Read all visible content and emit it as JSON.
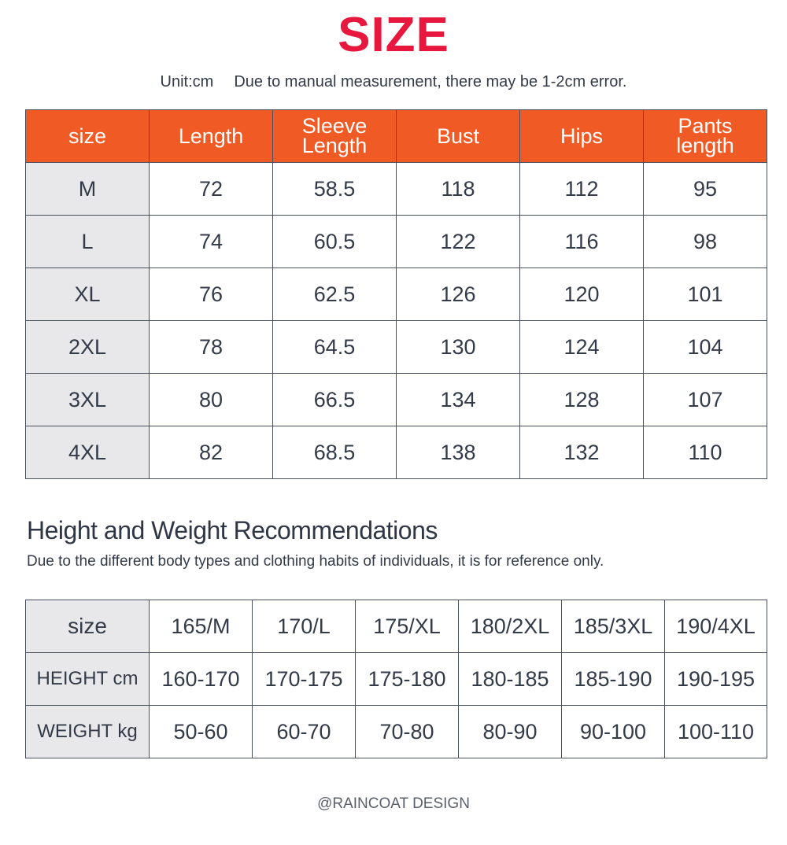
{
  "title": "SIZE",
  "subtitle": {
    "unit": "Unit:cm",
    "note": "Due to manual measurement, there may be 1-2cm error."
  },
  "size_table": {
    "headers": [
      "size",
      "Length",
      "Sleeve Length",
      "Bust",
      "Hips",
      "Pants length"
    ],
    "rows": [
      [
        "M",
        "72",
        "58.5",
        "118",
        "112",
        "95"
      ],
      [
        "L",
        "74",
        "60.5",
        "122",
        "116",
        "98"
      ],
      [
        "XL",
        "76",
        "62.5",
        "126",
        "120",
        "101"
      ],
      [
        "2XL",
        "78",
        "64.5",
        "130",
        "124",
        "104"
      ],
      [
        "3XL",
        "80",
        "66.5",
        "134",
        "128",
        "107"
      ],
      [
        "4XL",
        "82",
        "68.5",
        "138",
        "132",
        "110"
      ]
    ]
  },
  "recommendations": {
    "title": "Height and Weight Recommendations",
    "subtitle": "Due to the different body types and clothing habits of individuals, it is for reference only.",
    "rows": [
      [
        "size",
        "165/M",
        "170/L",
        "175/XL",
        "180/2XL",
        "185/3XL",
        "190/4XL"
      ],
      [
        "HEIGHT cm",
        "160-170",
        "170-175",
        "175-180",
        "180-185",
        "185-190",
        "190-195"
      ],
      [
        "WEIGHT kg",
        "50-60",
        "60-70",
        "70-80",
        "80-90",
        "90-100",
        "100-110"
      ]
    ]
  },
  "footer": "@RAINCOAT DESIGN",
  "colors": {
    "title": "#e8173d",
    "header_bg": "#f05a25",
    "rowhead_bg": "#e8e8ea",
    "text": "#333a48"
  }
}
